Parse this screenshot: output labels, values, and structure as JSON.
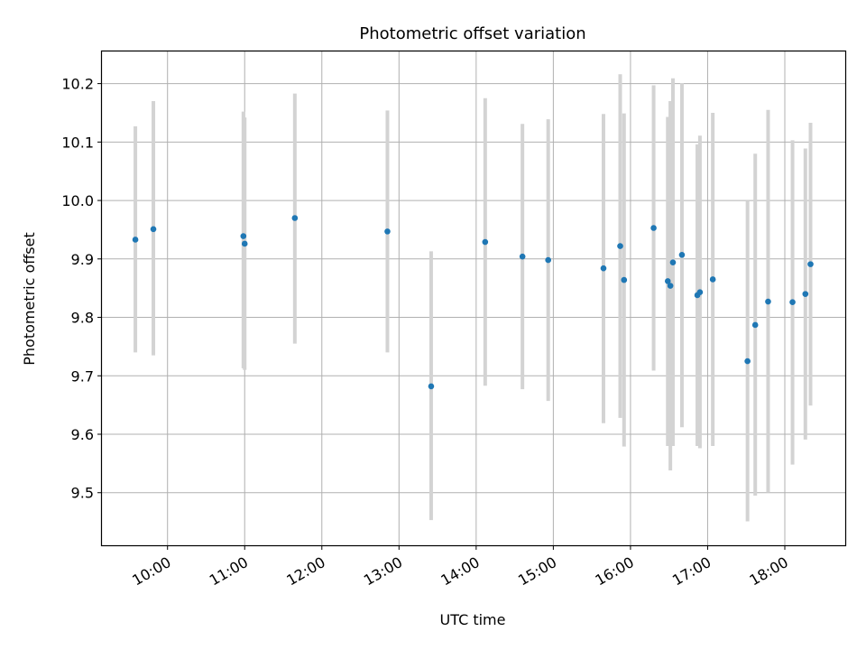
{
  "chart_data": {
    "type": "scatter",
    "title": "Photometric offset variation",
    "xlabel": "UTC time",
    "ylabel": "Photometric offset",
    "grid": true,
    "xlim": [
      "09:09",
      "18:47"
    ],
    "ylim": [
      9.41,
      10.255
    ],
    "x_ticks": [
      "10:00",
      "11:00",
      "12:00",
      "13:00",
      "14:00",
      "15:00",
      "16:00",
      "17:00",
      "18:00"
    ],
    "y_ticks": [
      "9.5",
      "9.6",
      "9.7",
      "9.8",
      "9.9",
      "10.0",
      "10.1",
      "10.2"
    ],
    "colors": {
      "marker": "#1f77b4",
      "errorbar": "#d3d3d3",
      "grid": "#b0b0b0"
    },
    "points": [
      {
        "t": "09:35",
        "y": 9.933,
        "lo": 9.74,
        "hi": 10.127
      },
      {
        "t": "09:49",
        "y": 9.951,
        "lo": 9.735,
        "hi": 10.17
      },
      {
        "t": "10:59",
        "y": 9.939,
        "lo": 9.713,
        "hi": 10.152
      },
      {
        "t": "11:00",
        "y": 9.926,
        "lo": 9.71,
        "hi": 10.142
      },
      {
        "t": "11:39",
        "y": 9.97,
        "lo": 9.755,
        "hi": 10.183
      },
      {
        "t": "12:51",
        "y": 9.947,
        "lo": 9.74,
        "hi": 10.154
      },
      {
        "t": "13:25",
        "y": 9.682,
        "lo": 9.453,
        "hi": 9.913
      },
      {
        "t": "14:07",
        "y": 9.929,
        "lo": 9.683,
        "hi": 10.175
      },
      {
        "t": "14:36",
        "y": 9.904,
        "lo": 9.677,
        "hi": 10.131
      },
      {
        "t": "14:56",
        "y": 9.898,
        "lo": 9.657,
        "hi": 10.139
      },
      {
        "t": "15:39",
        "y": 9.884,
        "lo": 9.619,
        "hi": 10.148
      },
      {
        "t": "15:52",
        "y": 9.922,
        "lo": 9.628,
        "hi": 10.216
      },
      {
        "t": "15:55",
        "y": 9.864,
        "lo": 9.579,
        "hi": 10.149
      },
      {
        "t": "16:18",
        "y": 9.953,
        "lo": 9.709,
        "hi": 10.197
      },
      {
        "t": "16:29",
        "y": 9.862,
        "lo": 9.58,
        "hi": 10.143
      },
      {
        "t": "16:31",
        "y": 9.854,
        "lo": 9.538,
        "hi": 10.17
      },
      {
        "t": "16:33",
        "y": 9.894,
        "lo": 9.58,
        "hi": 10.209
      },
      {
        "t": "16:40",
        "y": 9.907,
        "lo": 9.612,
        "hi": 10.201
      },
      {
        "t": "16:52",
        "y": 9.838,
        "lo": 9.58,
        "hi": 10.096
      },
      {
        "t": "16:54",
        "y": 9.843,
        "lo": 9.576,
        "hi": 10.111
      },
      {
        "t": "17:04",
        "y": 9.865,
        "lo": 9.58,
        "hi": 10.15
      },
      {
        "t": "17:31",
        "y": 9.725,
        "lo": 9.451,
        "hi": 10.0
      },
      {
        "t": "17:37",
        "y": 9.787,
        "lo": 9.495,
        "hi": 10.08
      },
      {
        "t": "17:47",
        "y": 9.827,
        "lo": 9.5,
        "hi": 10.155
      },
      {
        "t": "18:06",
        "y": 9.826,
        "lo": 9.548,
        "hi": 10.103
      },
      {
        "t": "18:16",
        "y": 9.84,
        "lo": 9.591,
        "hi": 10.089
      },
      {
        "t": "18:20",
        "y": 9.891,
        "lo": 9.649,
        "hi": 10.133
      }
    ]
  }
}
